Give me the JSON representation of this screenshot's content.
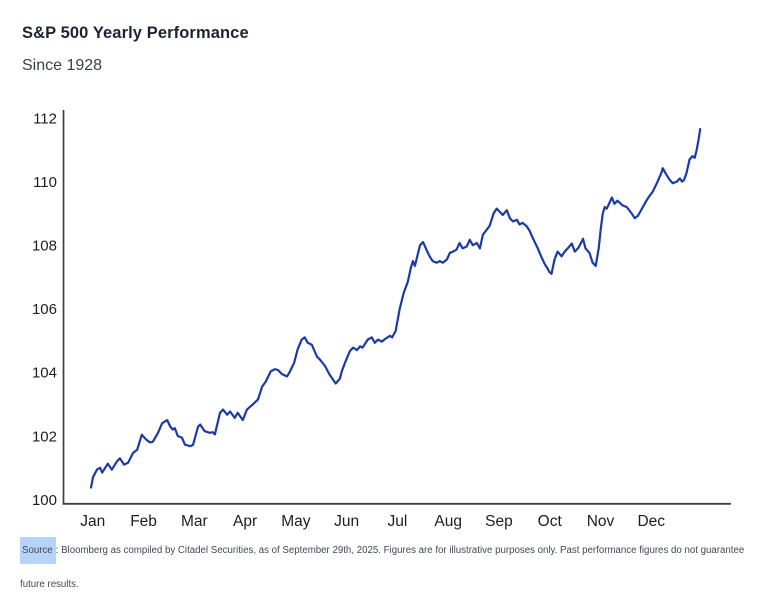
{
  "chart_data": {
    "type": "line",
    "title": "S&P 500 Yearly Performance",
    "subtitle": "Since 1928",
    "x_unit": "month (0 = Jan 1, 12 = Dec 31)",
    "x_tick_labels": [
      "Jan",
      "Feb",
      "Mar",
      "Apr",
      "May",
      "Jun",
      "Jul",
      "Aug",
      "Sep",
      "Oct",
      "Nov",
      "Dec"
    ],
    "y_ticks": [
      100,
      102,
      104,
      106,
      108,
      110,
      112
    ],
    "ylim": [
      100,
      112
    ],
    "grid": false,
    "legend": "none",
    "line_color": "#1c3aa5",
    "axis_color": "#404040",
    "tick_label_color": "#1e1e1e",
    "series": [
      {
        "points": [
          [
            0.0,
            100.38
          ],
          [
            0.04,
            100.7
          ],
          [
            0.12,
            100.95
          ],
          [
            0.18,
            101.0
          ],
          [
            0.22,
            100.85
          ],
          [
            0.28,
            101.0
          ],
          [
            0.33,
            101.13
          ],
          [
            0.41,
            100.94
          ],
          [
            0.51,
            101.2
          ],
          [
            0.57,
            101.3
          ],
          [
            0.65,
            101.1
          ],
          [
            0.73,
            101.16
          ],
          [
            0.83,
            101.47
          ],
          [
            0.91,
            101.57
          ],
          [
            1.0,
            102.04
          ],
          [
            1.08,
            101.9
          ],
          [
            1.16,
            101.8
          ],
          [
            1.22,
            101.82
          ],
          [
            1.32,
            102.1
          ],
          [
            1.4,
            102.4
          ],
          [
            1.5,
            102.5
          ],
          [
            1.56,
            102.3
          ],
          [
            1.61,
            102.2
          ],
          [
            1.65,
            102.25
          ],
          [
            1.71,
            102.0
          ],
          [
            1.79,
            101.95
          ],
          [
            1.85,
            101.73
          ],
          [
            1.95,
            101.68
          ],
          [
            2.01,
            101.72
          ],
          [
            2.11,
            102.3
          ],
          [
            2.15,
            102.36
          ],
          [
            2.24,
            102.15
          ],
          [
            2.34,
            102.1
          ],
          [
            2.4,
            102.12
          ],
          [
            2.44,
            102.05
          ],
          [
            2.54,
            102.73
          ],
          [
            2.6,
            102.83
          ],
          [
            2.68,
            102.67
          ],
          [
            2.74,
            102.77
          ],
          [
            2.83,
            102.57
          ],
          [
            2.89,
            102.73
          ],
          [
            2.99,
            102.5
          ],
          [
            3.07,
            102.83
          ],
          [
            3.19,
            103.0
          ],
          [
            3.29,
            103.15
          ],
          [
            3.37,
            103.55
          ],
          [
            3.44,
            103.7
          ],
          [
            3.54,
            104.03
          ],
          [
            3.62,
            104.1
          ],
          [
            3.68,
            104.08
          ],
          [
            3.76,
            103.95
          ],
          [
            3.86,
            103.87
          ],
          [
            3.92,
            104.03
          ],
          [
            4.0,
            104.3
          ],
          [
            4.07,
            104.72
          ],
          [
            4.15,
            105.03
          ],
          [
            4.21,
            105.1
          ],
          [
            4.27,
            104.93
          ],
          [
            4.35,
            104.87
          ],
          [
            4.45,
            104.5
          ],
          [
            4.51,
            104.4
          ],
          [
            4.61,
            104.2
          ],
          [
            4.7,
            103.93
          ],
          [
            4.82,
            103.65
          ],
          [
            4.9,
            103.8
          ],
          [
            4.94,
            104.03
          ],
          [
            5.0,
            104.3
          ],
          [
            5.1,
            104.67
          ],
          [
            5.16,
            104.78
          ],
          [
            5.24,
            104.7
          ],
          [
            5.3,
            104.82
          ],
          [
            5.35,
            104.78
          ],
          [
            5.45,
            105.03
          ],
          [
            5.53,
            105.1
          ],
          [
            5.59,
            104.93
          ],
          [
            5.65,
            105.03
          ],
          [
            5.73,
            104.97
          ],
          [
            5.79,
            105.05
          ],
          [
            5.89,
            105.15
          ],
          [
            5.93,
            105.1
          ],
          [
            6.0,
            105.3
          ],
          [
            6.08,
            106.0
          ],
          [
            6.16,
            106.5
          ],
          [
            6.24,
            106.85
          ],
          [
            6.3,
            107.3
          ],
          [
            6.34,
            107.5
          ],
          [
            6.38,
            107.35
          ],
          [
            6.42,
            107.6
          ],
          [
            6.48,
            108.0
          ],
          [
            6.54,
            108.1
          ],
          [
            6.61,
            107.85
          ],
          [
            6.67,
            107.65
          ],
          [
            6.73,
            107.5
          ],
          [
            6.81,
            107.45
          ],
          [
            6.87,
            107.5
          ],
          [
            6.93,
            107.45
          ],
          [
            7.01,
            107.55
          ],
          [
            7.07,
            107.76
          ],
          [
            7.13,
            107.8
          ],
          [
            7.2,
            107.86
          ],
          [
            7.26,
            108.07
          ],
          [
            7.32,
            107.9
          ],
          [
            7.4,
            107.96
          ],
          [
            7.46,
            108.17
          ],
          [
            7.52,
            108.0
          ],
          [
            7.6,
            108.07
          ],
          [
            7.66,
            107.9
          ],
          [
            7.72,
            108.33
          ],
          [
            7.8,
            108.5
          ],
          [
            7.85,
            108.6
          ],
          [
            7.89,
            108.8
          ],
          [
            7.93,
            109.0
          ],
          [
            7.99,
            109.15
          ],
          [
            8.05,
            109.05
          ],
          [
            8.11,
            108.95
          ],
          [
            8.19,
            109.1
          ],
          [
            8.25,
            108.85
          ],
          [
            8.31,
            108.75
          ],
          [
            8.39,
            108.8
          ],
          [
            8.44,
            108.65
          ],
          [
            8.5,
            108.7
          ],
          [
            8.58,
            108.6
          ],
          [
            8.64,
            108.45
          ],
          [
            8.68,
            108.3
          ],
          [
            8.74,
            108.1
          ],
          [
            8.8,
            107.9
          ],
          [
            8.88,
            107.6
          ],
          [
            8.94,
            107.4
          ],
          [
            9.0,
            107.25
          ],
          [
            9.03,
            107.15
          ],
          [
            9.07,
            107.1
          ],
          [
            9.13,
            107.55
          ],
          [
            9.19,
            107.8
          ],
          [
            9.27,
            107.65
          ],
          [
            9.33,
            107.8
          ],
          [
            9.39,
            107.9
          ],
          [
            9.47,
            108.05
          ],
          [
            9.53,
            107.8
          ],
          [
            9.59,
            107.9
          ],
          [
            9.63,
            108.0
          ],
          [
            9.69,
            108.2
          ],
          [
            9.74,
            107.9
          ],
          [
            9.82,
            107.75
          ],
          [
            9.88,
            107.45
          ],
          [
            9.94,
            107.35
          ],
          [
            10.0,
            107.9
          ],
          [
            10.04,
            108.5
          ],
          [
            10.08,
            109.0
          ],
          [
            10.12,
            109.2
          ],
          [
            10.16,
            109.15
          ],
          [
            10.26,
            109.5
          ],
          [
            10.31,
            109.3
          ],
          [
            10.37,
            109.4
          ],
          [
            10.47,
            109.25
          ],
          [
            10.55,
            109.2
          ],
          [
            10.65,
            109.0
          ],
          [
            10.71,
            108.85
          ],
          [
            10.77,
            108.92
          ],
          [
            10.87,
            109.2
          ],
          [
            10.94,
            109.4
          ],
          [
            11.0,
            109.55
          ],
          [
            11.06,
            109.67
          ],
          [
            11.16,
            110.0
          ],
          [
            11.24,
            110.3
          ],
          [
            11.26,
            110.42
          ],
          [
            11.34,
            110.2
          ],
          [
            11.4,
            110.05
          ],
          [
            11.46,
            109.95
          ],
          [
            11.54,
            110.0
          ],
          [
            11.6,
            110.1
          ],
          [
            11.64,
            110.0
          ],
          [
            11.68,
            110.05
          ],
          [
            11.73,
            110.27
          ],
          [
            11.79,
            110.7
          ],
          [
            11.85,
            110.8
          ],
          [
            11.89,
            110.75
          ],
          [
            11.93,
            111.0
          ],
          [
            11.97,
            111.35
          ],
          [
            12.0,
            111.65
          ]
        ]
      }
    ]
  },
  "footer": {
    "highlighted_word": "Source",
    "line1_rest": ": Bloomberg as compiled by Citadel Securities, as of September 29th, 2025. Figures are for illustrative purposes only. Past performance figures do not guarantee",
    "line2": "future results.",
    "highlight_color": "#b5d4f8"
  }
}
